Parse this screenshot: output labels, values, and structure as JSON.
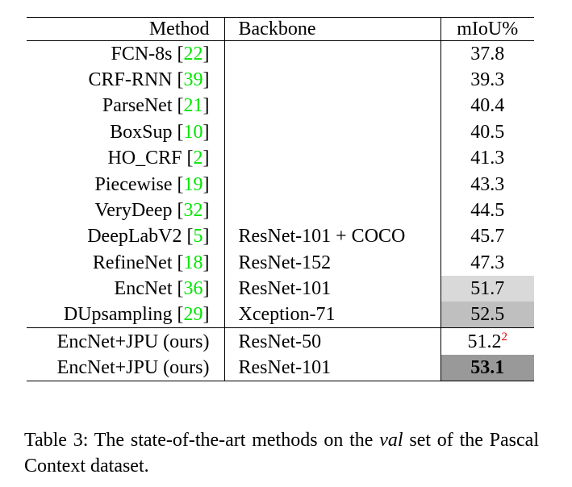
{
  "table": {
    "header": [
      "Method",
      "Backbone",
      "mIoU%"
    ],
    "cite_brackets": [
      "[",
      "]"
    ],
    "cite_color": "#00e600",
    "footnote_color": "#e00000",
    "groups": [
      [
        {
          "method": "FCN-8s",
          "cite": "22",
          "miou": "37.8"
        },
        {
          "method": "CRF-RNN",
          "cite": "39",
          "miou": "39.3"
        },
        {
          "method": "ParseNet",
          "cite": "21",
          "miou": "40.4"
        },
        {
          "method": "BoxSup",
          "cite": "10",
          "miou": "40.5"
        },
        {
          "method": "HO_CRF",
          "cite": "2",
          "miou": "41.3"
        },
        {
          "method": "Piecewise",
          "cite": "19",
          "miou": "43.3"
        },
        {
          "method": "VeryDeep",
          "cite": "32",
          "miou": "44.5"
        },
        {
          "method": "DeepLabV2",
          "cite": "5",
          "backbone": "ResNet-101 + COCO",
          "miou": "45.7"
        },
        {
          "method": "RefineNet",
          "cite": "18",
          "backbone": "ResNet-152",
          "miou": "47.3"
        },
        {
          "method": "EncNet",
          "cite": "36",
          "backbone": "ResNet-101",
          "miou": "51.7",
          "shade": "#d9d9d9"
        },
        {
          "method": "DUpsampling",
          "cite": "29",
          "backbone": "Xception-71",
          "miou": "52.5",
          "shade": "#bfbfbf"
        }
      ],
      [
        {
          "method": "EncNet+JPU (ours)",
          "backbone": "ResNet-50",
          "miou": "51.2",
          "footnote": "2"
        },
        {
          "method": "EncNet+JPU (ours)",
          "backbone": "ResNet-101",
          "miou": "53.1",
          "shade": "#999999",
          "bold": true
        }
      ]
    ]
  },
  "caption": {
    "before": "Table 3: The state-of-the-art methods on the ",
    "emphasis": "val",
    "after": " set of the Pascal Context dataset."
  }
}
